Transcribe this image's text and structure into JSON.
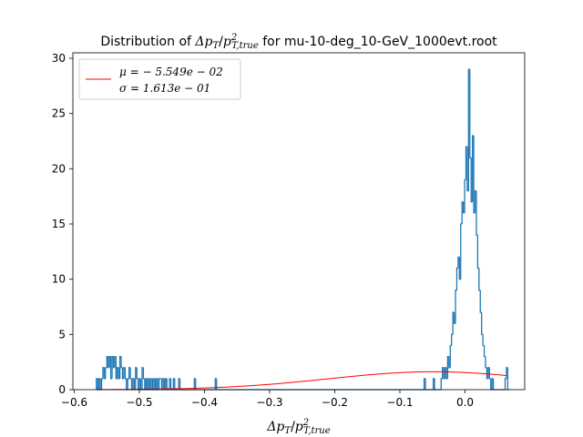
{
  "chart_data": {
    "type": "histogram",
    "title": {
      "prefix": "Distribution of ",
      "suffix": " for mu-10-deg_10-GeV_1000evt.root"
    },
    "xlabel": "Δp_T/p^2_{T,true}",
    "ylabel": "",
    "xlim": [
      -0.608,
      0.084
    ],
    "ylim": [
      0,
      30.5
    ],
    "xticks": [
      -0.6,
      -0.5,
      -0.4,
      -0.3,
      -0.2,
      -0.1,
      0.0
    ],
    "xtick_labels": [
      "−0.6",
      "−0.5",
      "−0.4",
      "−0.3",
      "−0.2",
      "−0.1",
      "0.0"
    ],
    "yticks": [
      0,
      5,
      10,
      15,
      20,
      25,
      30
    ],
    "ytick_labels": [
      "0",
      "5",
      "10",
      "15",
      "20",
      "25",
      "30"
    ],
    "grid": false,
    "legend": {
      "placement": "upper-left",
      "entries": [
        {
          "label_mu": "μ = − 5.549e − 02",
          "label_sigma": "σ = 1.613e − 01",
          "color": "#ff0000"
        }
      ]
    },
    "series": [
      {
        "kind": "step-histogram",
        "color": "#1f77b4",
        "bins": [
          [
            -0.572,
            1
          ],
          [
            -0.57,
            0
          ],
          [
            -0.568,
            1
          ],
          [
            -0.566,
            0
          ],
          [
            -0.564,
            1
          ],
          [
            -0.562,
            2
          ],
          [
            -0.56,
            1
          ],
          [
            -0.558,
            2
          ],
          [
            -0.556,
            3
          ],
          [
            -0.554,
            2
          ],
          [
            -0.552,
            3
          ],
          [
            -0.55,
            1
          ],
          [
            -0.548,
            3
          ],
          [
            -0.546,
            2
          ],
          [
            -0.544,
            3
          ],
          [
            -0.542,
            1
          ],
          [
            -0.54,
            2
          ],
          [
            -0.538,
            1
          ],
          [
            -0.536,
            3
          ],
          [
            -0.534,
            2
          ],
          [
            -0.532,
            1
          ],
          [
            -0.53,
            2
          ],
          [
            -0.528,
            1
          ],
          [
            -0.526,
            0
          ],
          [
            -0.524,
            1
          ],
          [
            -0.522,
            2
          ],
          [
            -0.52,
            1
          ],
          [
            -0.518,
            0
          ],
          [
            -0.516,
            1
          ],
          [
            -0.514,
            0
          ],
          [
            -0.512,
            2
          ],
          [
            -0.51,
            1
          ],
          [
            -0.508,
            0
          ],
          [
            -0.506,
            1
          ],
          [
            -0.504,
            0
          ],
          [
            -0.502,
            2
          ],
          [
            -0.5,
            1
          ],
          [
            -0.498,
            0
          ],
          [
            -0.496,
            1
          ],
          [
            -0.494,
            0
          ],
          [
            -0.492,
            1
          ],
          [
            -0.49,
            0
          ],
          [
            -0.488,
            1
          ],
          [
            -0.486,
            0
          ],
          [
            -0.484,
            1
          ],
          [
            -0.482,
            0
          ],
          [
            -0.48,
            1
          ],
          [
            -0.478,
            0
          ],
          [
            -0.476,
            1
          ],
          [
            -0.474,
            1
          ],
          [
            -0.472,
            0
          ],
          [
            -0.47,
            1
          ],
          [
            -0.468,
            0
          ],
          [
            -0.466,
            1
          ],
          [
            -0.464,
            0
          ],
          [
            -0.46,
            1
          ],
          [
            -0.458,
            0
          ],
          [
            -0.454,
            1
          ],
          [
            -0.452,
            0
          ],
          [
            -0.446,
            1
          ],
          [
            -0.444,
            0
          ],
          [
            -0.422,
            1
          ],
          [
            -0.42,
            0
          ],
          [
            -0.39,
            1
          ],
          [
            -0.388,
            0
          ],
          [
            -0.07,
            1
          ],
          [
            -0.068,
            0
          ],
          [
            -0.056,
            1
          ],
          [
            -0.054,
            0
          ],
          [
            -0.044,
            1
          ],
          [
            -0.042,
            2
          ],
          [
            -0.04,
            1
          ],
          [
            -0.038,
            2
          ],
          [
            -0.036,
            1
          ],
          [
            -0.034,
            3
          ],
          [
            -0.032,
            2
          ],
          [
            -0.03,
            4
          ],
          [
            -0.028,
            5
          ],
          [
            -0.026,
            7
          ],
          [
            -0.024,
            6
          ],
          [
            -0.022,
            9
          ],
          [
            -0.02,
            11
          ],
          [
            -0.018,
            12
          ],
          [
            -0.016,
            10
          ],
          [
            -0.014,
            15
          ],
          [
            -0.012,
            17
          ],
          [
            -0.01,
            16
          ],
          [
            -0.008,
            19
          ],
          [
            -0.006,
            22
          ],
          [
            -0.004,
            18
          ],
          [
            -0.002,
            29
          ],
          [
            0.0,
            21
          ],
          [
            0.002,
            17
          ],
          [
            0.004,
            23
          ],
          [
            0.006,
            16
          ],
          [
            0.008,
            18
          ],
          [
            0.01,
            14
          ],
          [
            0.012,
            11
          ],
          [
            0.014,
            9
          ],
          [
            0.016,
            7
          ],
          [
            0.018,
            5
          ],
          [
            0.02,
            4
          ],
          [
            0.022,
            3
          ],
          [
            0.024,
            2
          ],
          [
            0.026,
            1
          ],
          [
            0.028,
            2
          ],
          [
            0.03,
            1
          ],
          [
            0.032,
            0
          ],
          [
            0.034,
            1
          ],
          [
            0.036,
            0
          ],
          [
            0.054,
            1
          ],
          [
            0.056,
            2
          ],
          [
            0.058,
            0
          ]
        ]
      },
      {
        "kind": "gaussian-fit-line",
        "color": "#ff0000",
        "mu": -0.05549,
        "sigma": 0.1613,
        "peak": 1.62,
        "x_range": [
          -0.572,
          0.056
        ]
      }
    ]
  }
}
